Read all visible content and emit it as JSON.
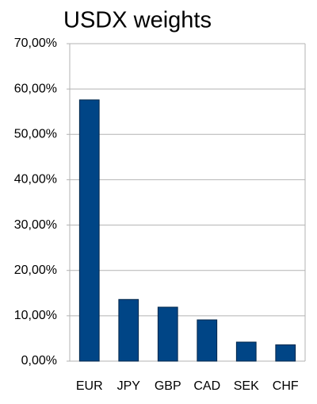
{
  "chart_data": {
    "type": "bar",
    "title": "USDX weights",
    "categories": [
      "EUR",
      "JPY",
      "GBP",
      "CAD",
      "SEK",
      "CHF"
    ],
    "values": [
      57.6,
      13.6,
      11.9,
      9.1,
      4.2,
      3.6
    ],
    "color": "#004586",
    "ylim": [
      0,
      70
    ],
    "yticks": [
      {
        "value": 0,
        "label": "0,00%"
      },
      {
        "value": 10,
        "label": "10,00%"
      },
      {
        "value": 20,
        "label": "20,00%"
      },
      {
        "value": 30,
        "label": "30,00%"
      },
      {
        "value": 40,
        "label": "40,00%"
      },
      {
        "value": 50,
        "label": "50,00%"
      },
      {
        "value": 60,
        "label": "60,00%"
      },
      {
        "value": 70,
        "label": "70,00%"
      }
    ],
    "grid": true
  }
}
